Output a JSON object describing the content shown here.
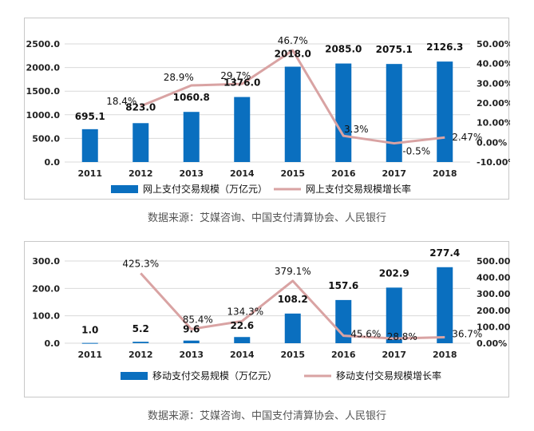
{
  "colors": {
    "bar": "#0a6fbf",
    "line": "#d9a3a3",
    "grid": "#d9d9d9",
    "axis_text": "#222222"
  },
  "chart_data": [
    {
      "type": "bar",
      "categories": [
        "2011",
        "2012",
        "2013",
        "2014",
        "2015",
        "2016",
        "2017",
        "2018"
      ],
      "series": [
        {
          "name": "网上支付交易规模（万亿元）",
          "type": "bar",
          "axis": "left",
          "values": [
            695.1,
            823.0,
            1060.8,
            1376.0,
            2018.0,
            2085.0,
            2075.1,
            2126.3
          ],
          "labels": [
            "695.1",
            "823.0",
            "1060.8",
            "1376.0",
            "2018.0",
            "2085.0",
            "2075.1",
            "2126.3"
          ]
        },
        {
          "name": "网上支付交易规模增长率",
          "type": "line",
          "axis": "right",
          "x": [
            "2012",
            "2013",
            "2014",
            "2015",
            "2016",
            "2017",
            "2018"
          ],
          "values": [
            18.4,
            28.9,
            29.7,
            46.7,
            3.3,
            -0.5,
            2.47
          ],
          "labels": [
            "18.4%",
            "28.9%",
            "29.7%",
            "46.7%",
            "3.3%",
            "-0.5%",
            "2.47%"
          ]
        }
      ],
      "ylim_left": [
        0,
        2500
      ],
      "yticks_left": [
        "0.0",
        "500.0",
        "1000.0",
        "1500.0",
        "2000.0",
        "2500.0"
      ],
      "ylim_right": [
        -10,
        50
      ],
      "yticks_right": [
        "-10.00%",
        "0.00%",
        "10.00%",
        "20.00%",
        "30.00%",
        "40.00%",
        "50.00%"
      ],
      "grid": true,
      "legend": "bottom",
      "source": "数据来源：艾媒咨询、中国支付清算协会、人民银行"
    },
    {
      "type": "bar",
      "categories": [
        "2011",
        "2012",
        "2013",
        "2014",
        "2015",
        "2016",
        "2017",
        "2018"
      ],
      "series": [
        {
          "name": "移动支付交易规模（万亿元）",
          "type": "bar",
          "axis": "left",
          "values": [
            1.0,
            5.2,
            9.6,
            22.6,
            108.2,
            157.6,
            202.9,
            277.4
          ],
          "labels": [
            "1.0",
            "5.2",
            "9.6",
            "22.6",
            "108.2",
            "157.6",
            "202.9",
            "277.4"
          ]
        },
        {
          "name": "移动支付交易规模增长率",
          "type": "line",
          "axis": "right",
          "x": [
            "2012",
            "2013",
            "2014",
            "2015",
            "2016",
            "2017",
            "2018"
          ],
          "values": [
            425.3,
            85.4,
            134.3,
            379.1,
            45.6,
            28.8,
            36.7
          ],
          "labels": [
            "425.3%",
            "85.4%",
            "134.3%",
            "379.1%",
            "45.6%",
            "28.8%",
            "36.7%"
          ]
        }
      ],
      "ylim_left": [
        0,
        300
      ],
      "yticks_left": [
        "0.0",
        "100.0",
        "200.0",
        "300.0"
      ],
      "ylim_right": [
        0,
        500
      ],
      "yticks_right": [
        "0.00%",
        "100.00%",
        "200.00%",
        "300.00%",
        "400.00%",
        "500.00%"
      ],
      "grid": true,
      "legend": "bottom",
      "source": "数据来源：艾媒咨询、中国支付清算协会、人民银行"
    }
  ]
}
